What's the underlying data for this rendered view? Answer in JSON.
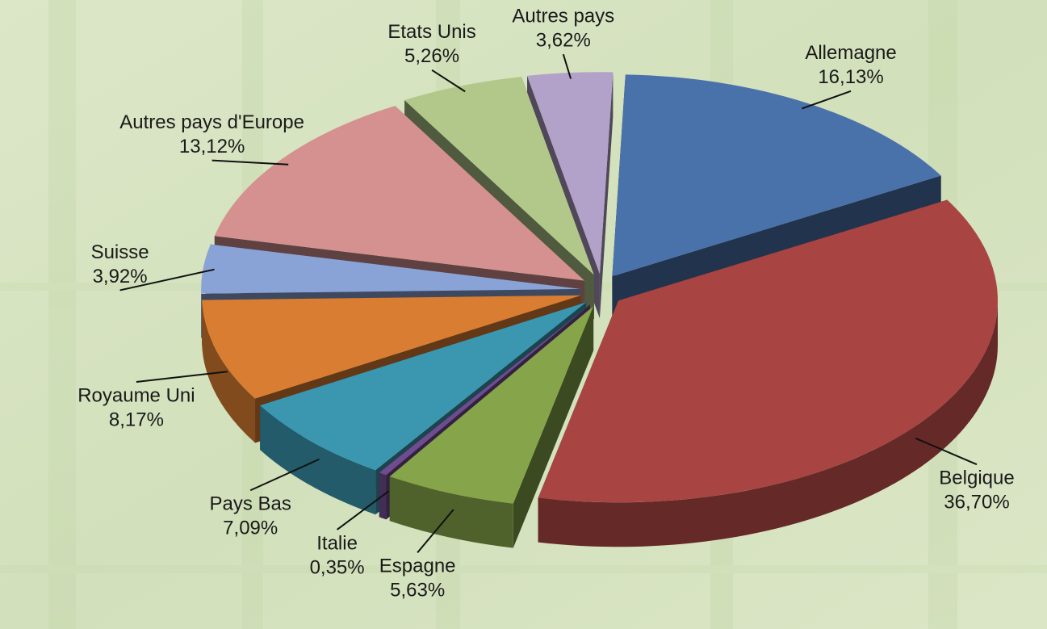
{
  "chart_data": {
    "type": "pie",
    "categories": [
      "Allemagne",
      "Belgique",
      "Espagne",
      "Italie",
      "Pays Bas",
      "Royaume Uni",
      "Suisse",
      "Autres pays d'Europe",
      "Etats Unis",
      "Autres pays"
    ],
    "values": [
      16.13,
      36.7,
      5.63,
      0.35,
      7.09,
      8.17,
      3.92,
      13.12,
      5.26,
      3.62
    ],
    "value_labels": [
      "16,13%",
      "36,70%",
      "5,63%",
      "0,35%",
      "7,09%",
      "8,17%",
      "3,92%",
      "13,12%",
      "5,26%",
      "3,62%"
    ],
    "colors": [
      "#4a72aa",
      "#a84442",
      "#86a44a",
      "#6e4c8e",
      "#3b97b0",
      "#d97d32",
      "#8aa3d6",
      "#d49190",
      "#b2c88a",
      "#b2a1c8"
    ]
  }
}
